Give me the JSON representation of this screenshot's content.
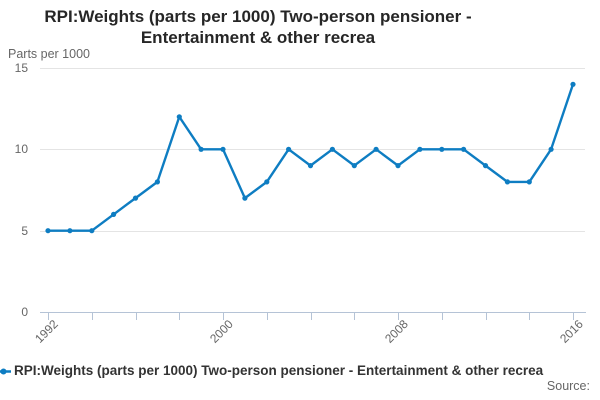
{
  "title": {
    "line1": "RPI:Weights (parts per 1000) Two-person pensioner -",
    "line2": "Entertainment & other recrea"
  },
  "y_axis": {
    "title": "Parts per 1000"
  },
  "legend": {
    "label": "RPI:Weights (parts per 1000) Two-person pensioner - Entertainment & other recrea"
  },
  "source": {
    "label": "Source:"
  },
  "colors": {
    "line": "#0e7dc2",
    "grid": "#e4e4e4",
    "axis": "#b5c3d6",
    "tick_text": "#666666",
    "title_text": "#262626"
  },
  "chart_data": {
    "type": "line",
    "title": "RPI:Weights (parts per 1000) Two-person pensioner - Entertainment & other recrea",
    "xlabel": "",
    "ylabel": "Parts per 1000",
    "x": [
      1992,
      1993,
      1994,
      1995,
      1996,
      1997,
      1998,
      1999,
      2000,
      2001,
      2002,
      2003,
      2004,
      2005,
      2006,
      2007,
      2008,
      2009,
      2010,
      2011,
      2012,
      2013,
      2014,
      2015,
      2016
    ],
    "values": [
      5,
      5,
      5,
      6,
      7,
      8,
      12,
      10,
      10,
      7,
      8,
      10,
      9,
      10,
      9,
      10,
      9,
      10,
      10,
      10,
      9,
      8,
      8,
      10,
      14
    ],
    "ylim": [
      0,
      15
    ],
    "y_ticks": [
      0,
      5,
      10,
      15
    ],
    "x_tick_interval": 2,
    "labeled_x_ticks": [
      1992,
      2000,
      2008,
      2016
    ],
    "grid": "horizontal",
    "marker": "circle",
    "legend_position": "bottom-left"
  }
}
